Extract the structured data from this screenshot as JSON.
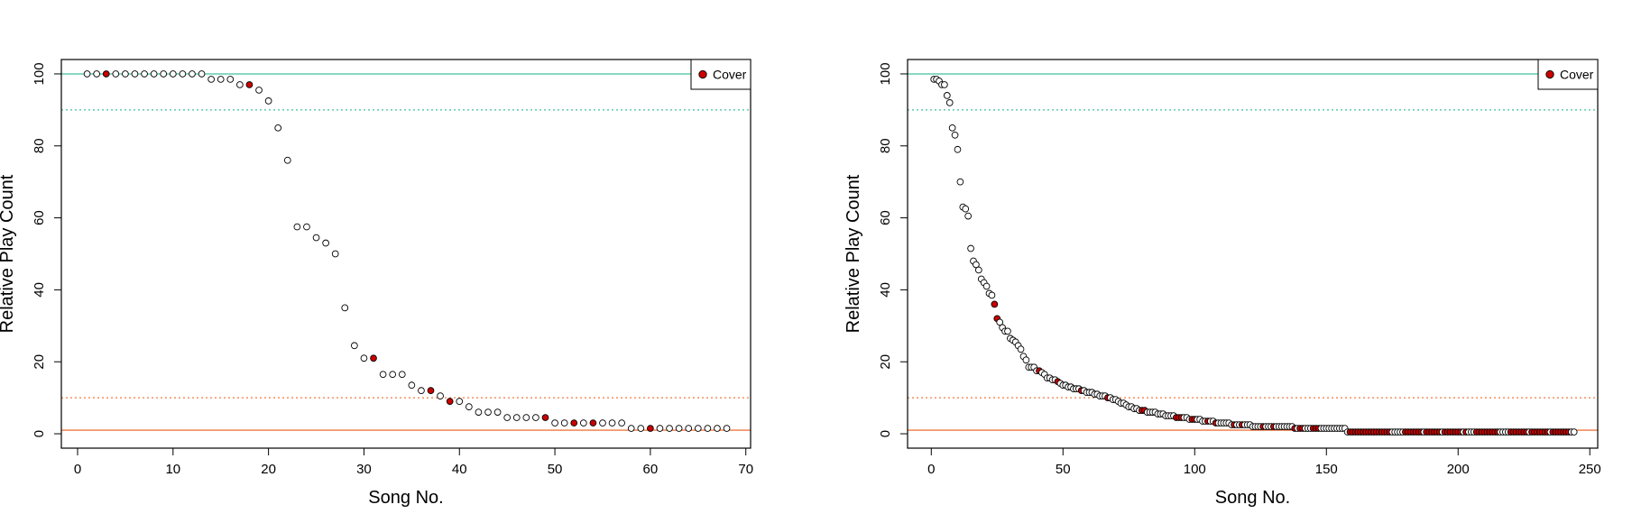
{
  "colors": {
    "cover": "#cc0000",
    "point_fill": "#ffffff",
    "upper_solid": "#40c0a0",
    "upper_dotted": "#40c0a0",
    "lower_solid": "#f07840",
    "lower_dotted": "#f07840"
  },
  "chart_data": [
    {
      "type": "scatter",
      "title": "",
      "xlabel": "Song No.",
      "ylabel": "Relative Play Count",
      "xlim": [
        -1.7,
        70.5
      ],
      "ylim": [
        -4,
        104
      ],
      "xticks": [
        0,
        10,
        20,
        30,
        40,
        50,
        60,
        70
      ],
      "yticks": [
        0,
        20,
        40,
        60,
        80,
        100
      ],
      "legend": {
        "label": "Cover",
        "position": "top-right"
      },
      "reference_lines": [
        {
          "y": 100,
          "style": "solid",
          "color": "#40c0a0"
        },
        {
          "y": 90,
          "style": "dotted",
          "color": "#40c0a0"
        },
        {
          "y": 10,
          "style": "dotted",
          "color": "#f07840"
        },
        {
          "y": 1,
          "style": "solid",
          "color": "#f07840"
        }
      ],
      "series": [
        {
          "x": [
            1,
            2,
            3,
            4,
            5,
            6,
            7,
            8,
            9,
            10,
            11,
            12,
            13,
            14,
            15,
            16,
            17,
            18,
            19,
            20,
            21,
            22,
            23,
            24,
            25,
            26,
            27,
            28,
            29,
            30,
            31,
            32,
            33,
            34,
            35,
            36,
            37,
            38,
            39,
            40,
            41,
            42,
            43,
            44,
            45,
            46,
            47,
            48,
            49,
            50,
            51,
            52,
            53,
            54,
            55,
            56,
            57,
            58,
            59,
            60,
            61,
            62,
            63,
            64,
            65,
            66,
            67,
            68
          ],
          "y": [
            100,
            100,
            100,
            100,
            100,
            100,
            100,
            100,
            100,
            100,
            100,
            100,
            100,
            98.5,
            98.5,
            98.5,
            97,
            97,
            95.5,
            92.5,
            85,
            76,
            57.5,
            57.5,
            54.5,
            53,
            50,
            35,
            24.5,
            21,
            21,
            16.5,
            16.5,
            16.5,
            13.5,
            12,
            12,
            10.5,
            9,
            9,
            7.5,
            6,
            6,
            6,
            4.5,
            4.5,
            4.5,
            4.5,
            4.5,
            3,
            3,
            3,
            3,
            3,
            3,
            3,
            3,
            1.5,
            1.5,
            1.5,
            1.5,
            1.5,
            1.5,
            1.5,
            1.5,
            1.5,
            1.5,
            1.5
          ],
          "cover": [
            3,
            18,
            31,
            37,
            39,
            49,
            52,
            54,
            60
          ]
        }
      ]
    },
    {
      "type": "scatter",
      "title": "",
      "xlabel": "Song No.",
      "ylabel": "Relative Play Count",
      "xlim": [
        -9,
        253
      ],
      "ylim": [
        -4,
        104
      ],
      "xticks": [
        0,
        50,
        100,
        150,
        200,
        250
      ],
      "yticks": [
        0,
        20,
        40,
        60,
        80,
        100
      ],
      "legend": {
        "label": "Cover",
        "position": "top-right"
      },
      "reference_lines": [
        {
          "y": 100,
          "style": "solid",
          "color": "#40c0a0"
        },
        {
          "y": 90,
          "style": "dotted",
          "color": "#40c0a0"
        },
        {
          "y": 10,
          "style": "dotted",
          "color": "#f07840"
        },
        {
          "y": 1,
          "style": "solid",
          "color": "#f07840"
        }
      ],
      "series": [
        {
          "n": 244,
          "curve_points": [
            [
              1,
              98.5
            ],
            [
              2,
              98.5
            ],
            [
              3,
              98
            ],
            [
              4,
              97
            ],
            [
              5,
              97
            ],
            [
              6,
              94
            ],
            [
              7,
              92
            ],
            [
              8,
              85
            ],
            [
              9,
              83
            ],
            [
              10,
              79
            ],
            [
              11,
              70
            ],
            [
              12,
              63
            ],
            [
              13,
              62.5
            ],
            [
              14,
              60.5
            ],
            [
              15,
              51.5
            ],
            [
              16,
              48
            ],
            [
              17,
              47
            ],
            [
              18,
              45.5
            ],
            [
              19,
              43
            ],
            [
              20,
              42
            ],
            [
              21,
              41
            ],
            [
              22,
              39
            ],
            [
              23,
              38.5
            ],
            [
              24,
              36
            ],
            [
              25,
              32
            ],
            [
              26,
              31
            ],
            [
              27,
              29.5
            ],
            [
              28,
              28.5
            ],
            [
              29,
              28.5
            ],
            [
              30,
              26.5
            ],
            [
              31,
              26
            ],
            [
              32,
              25.5
            ],
            [
              33,
              24.5
            ],
            [
              34,
              23.5
            ],
            [
              35,
              21.5
            ],
            [
              36,
              20.5
            ],
            [
              37,
              18.5
            ],
            [
              38,
              18.5
            ],
            [
              39,
              18.5
            ],
            [
              40,
              17.5
            ],
            [
              42,
              17
            ],
            [
              44,
              15.5
            ],
            [
              46,
              15
            ],
            [
              48,
              14.5
            ],
            [
              50,
              13.5
            ],
            [
              55,
              12.5
            ],
            [
              60,
              11.5
            ],
            [
              65,
              10.5
            ],
            [
              70,
              9.5
            ],
            [
              75,
              7.5
            ],
            [
              80,
              6.5
            ],
            [
              90,
              5
            ],
            [
              100,
              4
            ],
            [
              110,
              3
            ],
            [
              125,
              2
            ],
            [
              150,
              1.5
            ],
            [
              157,
              1.5
            ],
            [
              158,
              0.7
            ],
            [
              244,
              0.7
            ]
          ],
          "cover": [
            24,
            25,
            41,
            48,
            57,
            67,
            80,
            81,
            93,
            94,
            95,
            99,
            100,
            105,
            108,
            115,
            118,
            126,
            130,
            138,
            140,
            141,
            145,
            146,
            147,
            159,
            160,
            161,
            162,
            163,
            164,
            165,
            166,
            167,
            168,
            169,
            170,
            171,
            172,
            173,
            174,
            180,
            181,
            182,
            183,
            184,
            185,
            186,
            188,
            189,
            190,
            191,
            192,
            193,
            195,
            196,
            197,
            198,
            199,
            200,
            201,
            203,
            207,
            208,
            209,
            210,
            211,
            212,
            213,
            214,
            215,
            220,
            221,
            222,
            223,
            224,
            225,
            226,
            228,
            229,
            230,
            231,
            232,
            233,
            234,
            236,
            237,
            238,
            239,
            240,
            241,
            242
          ]
        }
      ]
    }
  ]
}
